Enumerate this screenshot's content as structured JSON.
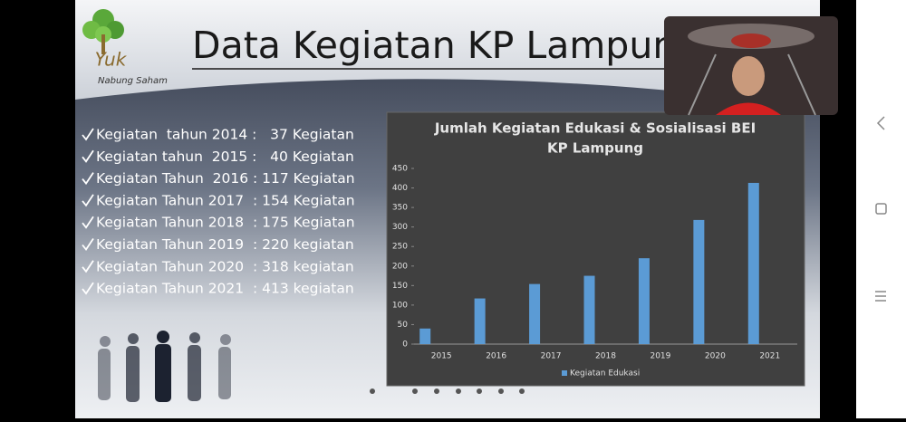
{
  "slide": {
    "title": "Data Kegiatan KP Lampung",
    "logo": {
      "mark": "Yuk",
      "caption": "Nabung Saham"
    },
    "items": [
      "Kegiatan  tahun 2014 :   37 Kegiatan",
      "Kegiatan tahun  2015 :   40 Kegiatan",
      "Kegiatan Tahun  2016 : 117 Kegiatan",
      "Kegiatan Tahun 2017  : 154 Kegiatan",
      "Kegiatan Tahun 2018  : 175 Kegiatan",
      "Kegiatan Tahun 2019  : 220 kegiatan",
      "Kegiatan Tahun 2020  : 318 kegiatan",
      "Kegiatan Tahun 2021  : 413 kegiatan"
    ]
  },
  "chart_data": {
    "type": "bar",
    "title": "Jumlah Kegiatan Edukasi & Sosialisasi BEI",
    "subtitle": "KP Lampung",
    "categories": [
      "2015",
      "2016",
      "2017",
      "2018",
      "2019",
      "2020",
      "2021"
    ],
    "series": [
      {
        "name": "Kegiatan Edukasi",
        "color": "#5b9bd5",
        "values": [
          40,
          117,
          154,
          175,
          220,
          318,
          413
        ]
      }
    ],
    "ylim": [
      0,
      450
    ],
    "yticks": [
      0,
      50,
      100,
      150,
      200,
      250,
      300,
      350,
      400,
      450
    ],
    "grid": false,
    "legend": "bottom"
  }
}
